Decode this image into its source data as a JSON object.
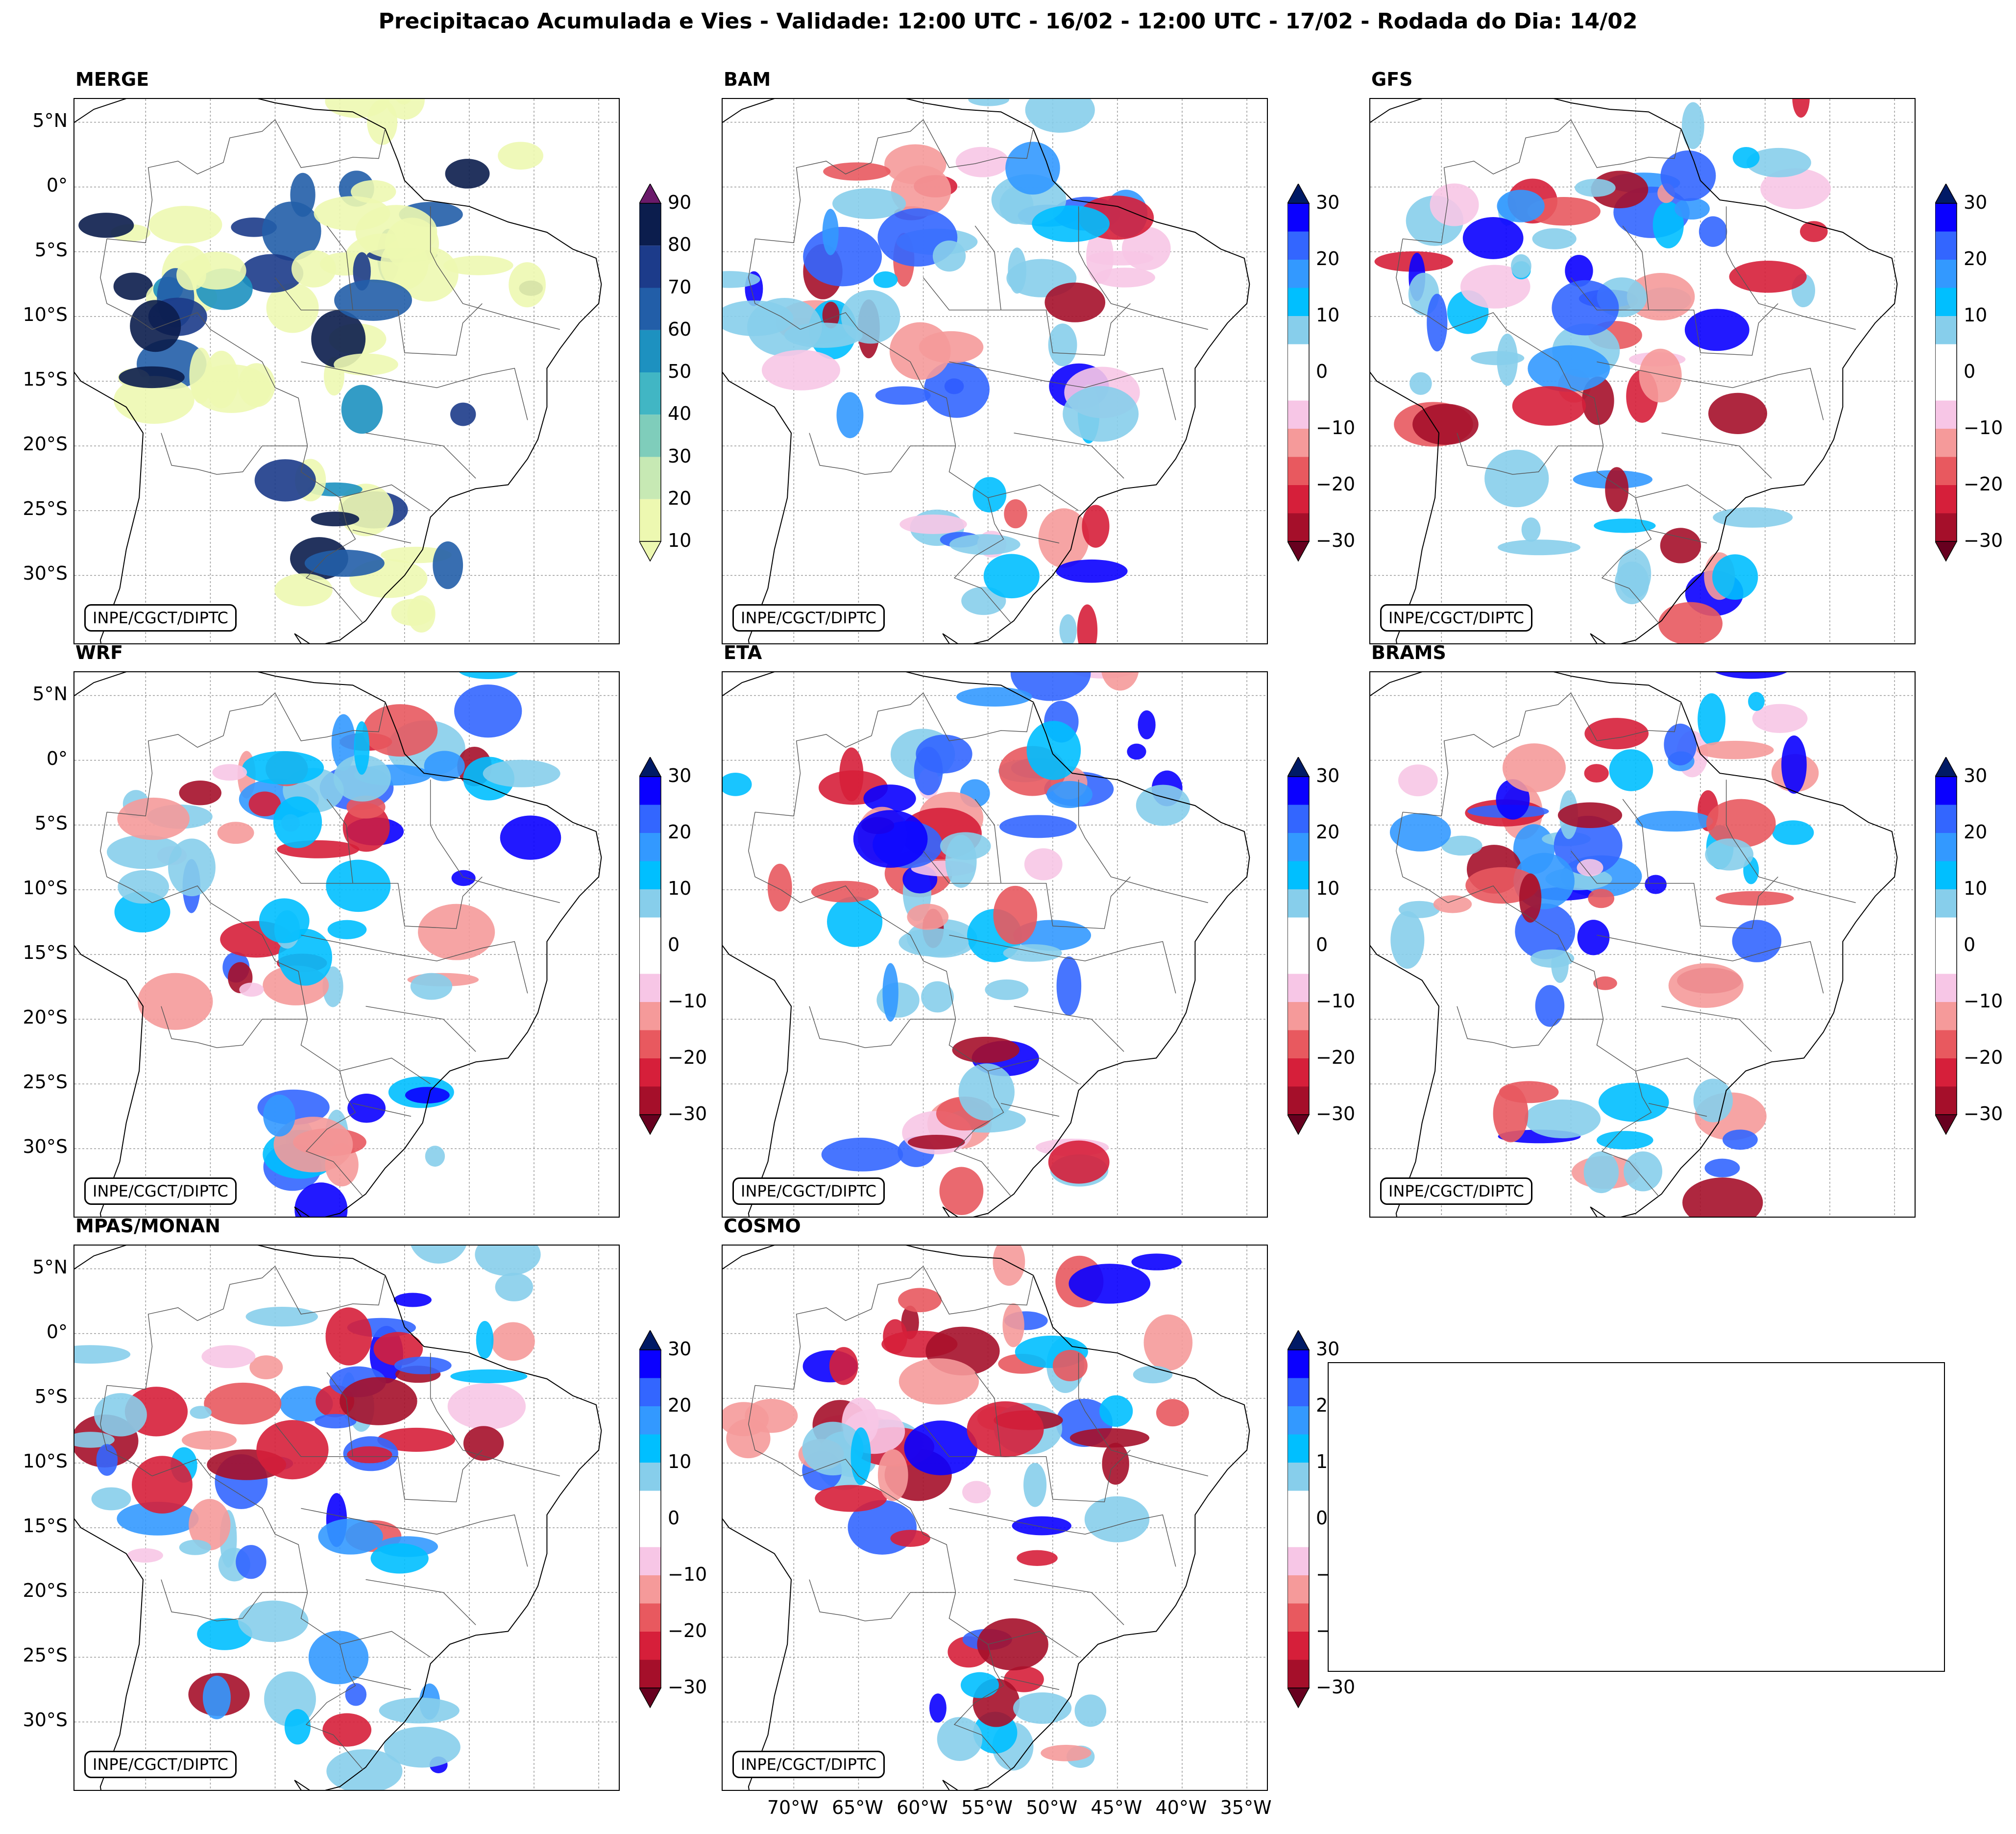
{
  "title": "Precipitacao Acumulada e Vies - Validade: 12:00 UTC - 16/02 - 12:00 UTC - 17/02 - Rodada do Dia: 14/02",
  "credit": "INPE/CGCT/DIPTC",
  "lat_labels": [
    "5°N",
    "0°",
    "5°S",
    "10°S",
    "15°S",
    "20°S",
    "25°S",
    "30°S"
  ],
  "lon_labels": [
    "70°W",
    "65°W",
    "60°W",
    "55°W",
    "50°W",
    "45°W",
    "40°W",
    "35°W"
  ],
  "colorbars": {
    "precip": {
      "ticks": [
        "90",
        "80",
        "70",
        "60",
        "50",
        "40",
        "30",
        "20",
        "10"
      ],
      "colors": [
        "#0b1d4d",
        "#1c3b8a",
        "#225ea8",
        "#1d91c0",
        "#41b6c4",
        "#7fcdbb",
        "#c7e9b4",
        "#edf8b1"
      ],
      "extend_max": "#6a1a6a"
    },
    "bias": {
      "ticks": [
        "30",
        "20",
        "10",
        "0",
        "−10",
        "−20",
        "−30"
      ],
      "colors": [
        "#0a00ff",
        "#3366ff",
        "#3399ff",
        "#00bfff",
        "#87ceeb",
        "#ffffff",
        "#ffffff",
        "#f7c6e6",
        "#f59a9a",
        "#e8595f",
        "#d61f3a",
        "#a50f2a"
      ],
      "extend_max": "#001a66",
      "extend_min": "#67001f"
    }
  },
  "panels": [
    {
      "name": "MERGE",
      "kind": "precip"
    },
    {
      "name": "BAM",
      "kind": "bias"
    },
    {
      "name": "GFS",
      "kind": "bias"
    },
    {
      "name": "WRF",
      "kind": "bias"
    },
    {
      "name": "ETA",
      "kind": "bias"
    },
    {
      "name": "BRAMS",
      "kind": "bias"
    },
    {
      "name": "MPAS/MONAN",
      "kind": "bias"
    },
    {
      "name": "COSMO",
      "kind": "bias"
    }
  ]
}
